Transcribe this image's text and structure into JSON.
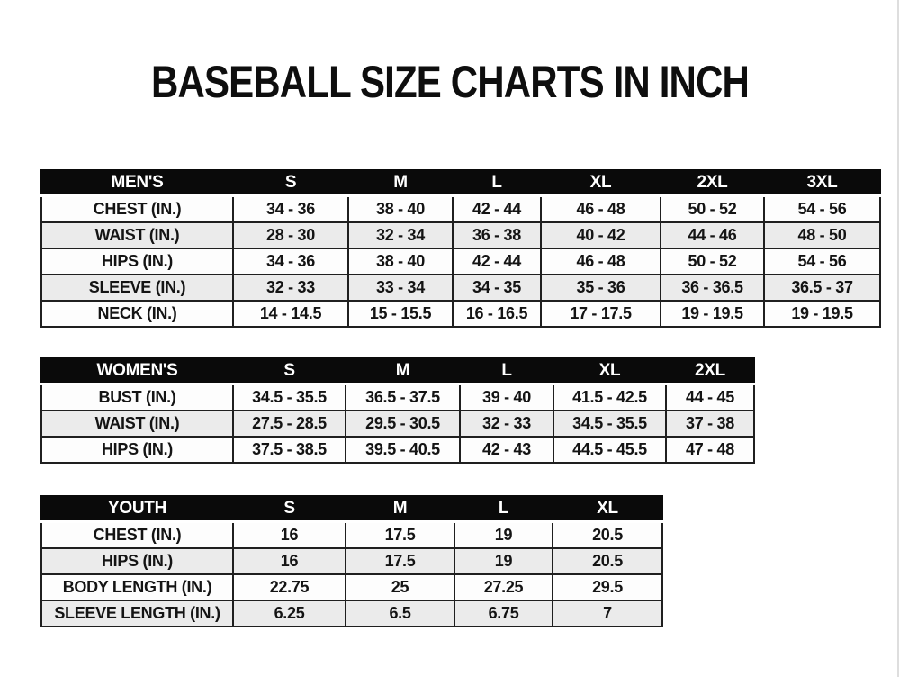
{
  "title": "BASEBALL SIZE CHARTS IN INCH",
  "colors": {
    "header_bg": "#0a0a0a",
    "header_text": "#ffffff",
    "border": "#1f1f1f",
    "cell_text": "#141414",
    "row_bg": "#fdfdfd",
    "row_alt_bg": "#ebebeb"
  },
  "chart_data": [
    {
      "type": "table",
      "name": "mens",
      "title": "MEN'S",
      "columns": [
        "MEN'S",
        "S",
        "M",
        "L",
        "XL",
        "2XL",
        "3XL"
      ],
      "rows": [
        [
          "CHEST (IN.)",
          "34 - 36",
          "38 - 40",
          "42 - 44",
          "46 - 48",
          "50 - 52",
          "54 - 56"
        ],
        [
          "WAIST (IN.)",
          "28 - 30",
          "32 - 34",
          "36 - 38",
          "40 - 42",
          "44 - 46",
          "48 - 50"
        ],
        [
          "HIPS (IN.)",
          "34 - 36",
          "38 - 40",
          "42 - 44",
          "46 - 48",
          "50 - 52",
          "54 - 56"
        ],
        [
          "SLEEVE (IN.)",
          "32 - 33",
          "33 - 34",
          "34 - 35",
          "35 - 36",
          "36 - 36.5",
          "36.5 - 37"
        ],
        [
          "NECK (IN.)",
          "14 - 14.5",
          "15 - 15.5",
          "16 - 16.5",
          "17 - 17.5",
          "19 - 19.5",
          "19 - 19.5"
        ]
      ]
    },
    {
      "type": "table",
      "name": "womens",
      "title": "WOMEN'S",
      "columns": [
        "WOMEN'S",
        "S",
        "M",
        "L",
        "XL",
        "2XL"
      ],
      "rows": [
        [
          "BUST (IN.)",
          "34.5 - 35.5",
          "36.5 - 37.5",
          "39 - 40",
          "41.5 - 42.5",
          "44 - 45"
        ],
        [
          "WAIST (IN.)",
          "27.5 - 28.5",
          "29.5 - 30.5",
          "32 - 33",
          "34.5 - 35.5",
          "37 - 38"
        ],
        [
          "HIPS (IN.)",
          "37.5 - 38.5",
          "39.5 - 40.5",
          "42 - 43",
          "44.5 - 45.5",
          "47 - 48"
        ]
      ]
    },
    {
      "type": "table",
      "name": "youth",
      "title": "YOUTH",
      "columns": [
        "YOUTH",
        "S",
        "M",
        "L",
        "XL"
      ],
      "rows": [
        [
          "CHEST (IN.)",
          "16",
          "17.5",
          "19",
          "20.5"
        ],
        [
          "HIPS (IN.)",
          "16",
          "17.5",
          "19",
          "20.5"
        ],
        [
          "BODY LENGTH (IN.)",
          "22.75",
          "25",
          "27.25",
          "29.5"
        ],
        [
          "SLEEVE LENGTH (IN.)",
          "6.25",
          "6.5",
          "6.75",
          "7"
        ]
      ]
    }
  ]
}
